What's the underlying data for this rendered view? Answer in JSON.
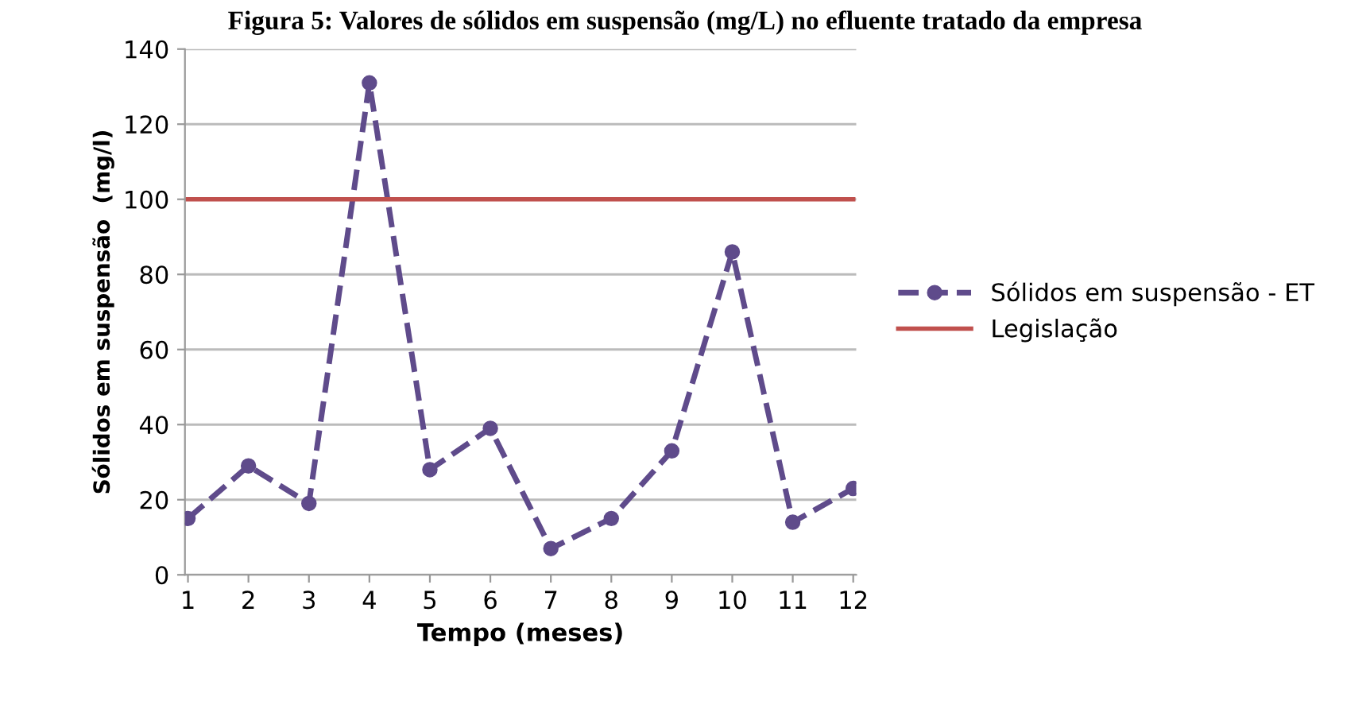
{
  "chart_data": {
    "type": "line",
    "title": "Figura 5: Valores de sólidos em suspensão (mg/L) no efluente tratado da empresa",
    "xlabel": "Tempo (meses)",
    "ylabel": "Sólidos em suspensão  (mg/l)",
    "categories": [
      "1",
      "2",
      "3",
      "4",
      "5",
      "6",
      "7",
      "8",
      "9",
      "10",
      "11",
      "12"
    ],
    "series": [
      {
        "name": "Sólidos em suspensão - ET",
        "color": "#5f4b8b",
        "values": [
          15,
          29,
          19,
          131,
          28,
          39,
          7,
          15,
          33,
          86,
          14,
          23
        ],
        "marker": "circle",
        "line_style": "dashed"
      },
      {
        "name": "Legislação",
        "color": "#c0504d",
        "values": [
          100,
          100,
          100,
          100,
          100,
          100,
          100,
          100,
          100,
          100,
          100,
          100
        ],
        "marker": "none",
        "line_style": "solid"
      }
    ],
    "ylim": [
      0,
      140
    ],
    "yticks": [
      0,
      20,
      40,
      60,
      80,
      100,
      120,
      140
    ],
    "grid": "y",
    "legend": "right"
  }
}
